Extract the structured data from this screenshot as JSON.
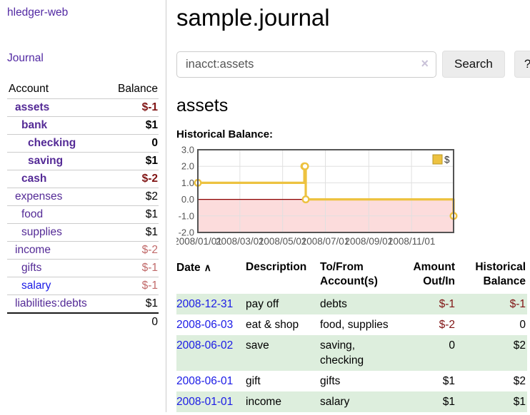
{
  "app": {
    "title": "hledger-web"
  },
  "sidebar": {
    "journal_label": "Journal",
    "table": {
      "account_header": "Account",
      "balance_header": "Balance",
      "total": "0"
    },
    "accounts": [
      {
        "name": "assets",
        "depth": 1,
        "bold": true,
        "balance": "$-1",
        "negative": true
      },
      {
        "name": "bank",
        "depth": 2,
        "bold": true,
        "balance": "$1",
        "negative": false
      },
      {
        "name": "checking",
        "depth": 3,
        "bold": true,
        "balance": "0",
        "negative": false
      },
      {
        "name": "saving",
        "depth": 3,
        "bold": true,
        "balance": "$1",
        "negative": false
      },
      {
        "name": "cash",
        "depth": 2,
        "bold": true,
        "balance": "$-2",
        "negative": true
      },
      {
        "name": "expenses",
        "depth": 1,
        "bold": false,
        "balance": "$2",
        "negative": false
      },
      {
        "name": "food",
        "depth": 2,
        "bold": false,
        "balance": "$1",
        "negative": false
      },
      {
        "name": "supplies",
        "depth": 2,
        "bold": false,
        "balance": "$1",
        "negative": false
      },
      {
        "name": "income",
        "depth": 1,
        "bold": false,
        "balance": "$-2",
        "negative": true
      },
      {
        "name": "gifts",
        "depth": 2,
        "bold": false,
        "balance": "$-1",
        "negative": true
      },
      {
        "name": "salary",
        "depth": 2,
        "bold": false,
        "balance": "$-1",
        "negative": true,
        "link_color": "blue"
      },
      {
        "name": "liabilities:debts",
        "depth": 1,
        "bold": false,
        "balance": "$1",
        "negative": false
      }
    ]
  },
  "header": {
    "title": "sample.journal"
  },
  "search": {
    "value": "inacct:assets",
    "clear_icon": "×",
    "button_label": "Search",
    "help_label": "?"
  },
  "main": {
    "account_heading": "assets",
    "chart_label": "Historical Balance:"
  },
  "chart_data": {
    "type": "line",
    "title": "Historical Balance",
    "step": true,
    "legend": {
      "label": "$",
      "position": "top-right"
    },
    "ylim": [
      -2.0,
      3.0
    ],
    "xlim": [
      "2008-01-01",
      "2008-12-31"
    ],
    "y_ticks": [
      {
        "value": 3.0,
        "label": "3.0"
      },
      {
        "value": 2.0,
        "label": "2.0"
      },
      {
        "value": 1.0,
        "label": "1.0"
      },
      {
        "value": 0.0,
        "label": "0.0"
      },
      {
        "value": -1.0,
        "label": "-1.0"
      },
      {
        "value": -2.0,
        "label": "-2.0"
      }
    ],
    "x_ticks": [
      {
        "date": "2008-01-01",
        "label": "2008/01/01"
      },
      {
        "date": "2008-03-01",
        "label": "2008/03/01"
      },
      {
        "date": "2008-05-01",
        "label": "2008/05/01"
      },
      {
        "date": "2008-07-01",
        "label": "2008/07/01"
      },
      {
        "date": "2008-09-01",
        "label": "2008/09/01"
      },
      {
        "date": "2008-11-01",
        "label": "2008/11/01"
      }
    ],
    "series": [
      {
        "name": "$",
        "points": [
          {
            "date": "2008-01-01",
            "value": 1
          },
          {
            "date": "2008-06-01",
            "value": 2
          },
          {
            "date": "2008-06-02",
            "value": 2
          },
          {
            "date": "2008-06-03",
            "value": 0
          },
          {
            "date": "2008-12-31",
            "value": -1
          }
        ]
      }
    ],
    "colors": {
      "series": "#EDC240",
      "series_edge": "#b89726",
      "marker_fill": "#ffffff",
      "zero_line": "#8b0000",
      "negative_fill": "#fcdcdc",
      "grid": "#e0e0e0",
      "border": "#545454",
      "tick_text": "#545454"
    }
  },
  "register": {
    "sort_icon": "∧",
    "headers": [
      {
        "lines": [
          "Date"
        ],
        "sortable": true,
        "align": "left"
      },
      {
        "lines": [
          "Description"
        ],
        "align": "left"
      },
      {
        "lines": [
          "To/From",
          "Account(s)"
        ],
        "align": "left"
      },
      {
        "lines": [
          "Amount",
          "Out/In"
        ],
        "align": "right"
      },
      {
        "lines": [
          "Historical",
          "Balance"
        ],
        "align": "right"
      }
    ],
    "rows": [
      {
        "date": "2008-12-31",
        "description": "pay off",
        "accounts": "debts",
        "amount": "$-1",
        "amount_negative": true,
        "balance": "$-1",
        "balance_negative": true,
        "green": true
      },
      {
        "date": "2008-06-03",
        "description": "eat & shop",
        "accounts": "food, supplies",
        "amount": "$-2",
        "amount_negative": true,
        "balance": "0",
        "balance_negative": false,
        "green": false
      },
      {
        "date": "2008-06-02",
        "description": "save",
        "accounts": "saving, checking",
        "amount": "0",
        "amount_negative": false,
        "balance": "$2",
        "balance_negative": false,
        "green": true
      },
      {
        "date": "2008-06-01",
        "description": "gift",
        "accounts": "gifts",
        "amount": "$1",
        "amount_negative": false,
        "balance": "$2",
        "balance_negative": false,
        "green": false
      },
      {
        "date": "2008-01-01",
        "description": "income",
        "accounts": "salary",
        "amount": "$1",
        "amount_negative": false,
        "balance": "$1",
        "balance_negative": false,
        "green": true
      }
    ]
  }
}
